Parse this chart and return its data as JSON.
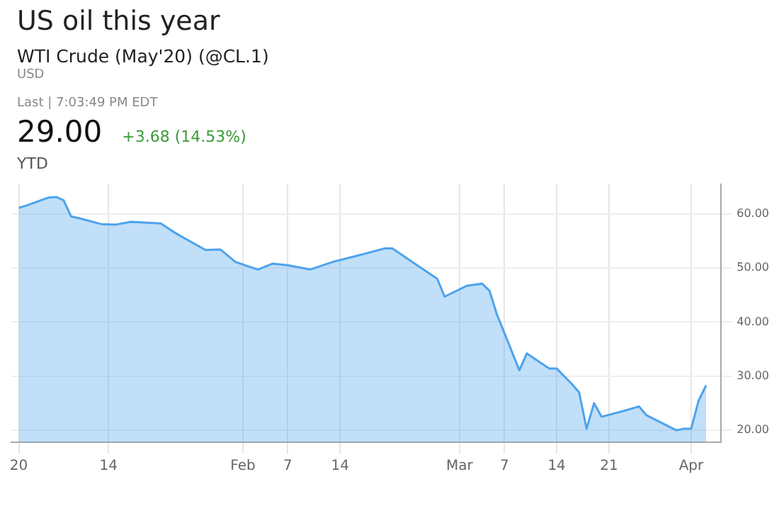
{
  "chart_data": {
    "type": "area",
    "title": "US oil this year",
    "subtitle": "WTI Crude (May'20) (@CL.1)",
    "annotations": [
      "USD",
      "Last | 7:03:49 PM EDT",
      "29.00",
      "+3.68 (14.53%)",
      "YTD"
    ],
    "x": [
      "2020-01-02",
      "2020-01-03",
      "2020-01-06",
      "2020-01-07",
      "2020-01-08",
      "2020-01-09",
      "2020-01-10",
      "2020-01-13",
      "2020-01-15",
      "2020-01-17",
      "2020-01-21",
      "2020-01-23",
      "2020-01-27",
      "2020-01-29",
      "2020-01-31",
      "2020-02-03",
      "2020-02-05",
      "2020-02-07",
      "2020-02-10",
      "2020-02-13",
      "2020-02-17",
      "2020-02-20",
      "2020-02-21",
      "2020-02-24",
      "2020-02-27",
      "2020-02-28",
      "2020-03-02",
      "2020-03-04",
      "2020-03-05",
      "2020-03-06",
      "2020-03-09",
      "2020-03-10",
      "2020-03-13",
      "2020-03-14",
      "2020-03-16",
      "2020-03-17",
      "2020-03-18",
      "2020-03-19",
      "2020-03-20",
      "2020-03-23",
      "2020-03-25",
      "2020-03-26",
      "2020-03-30",
      "2020-03-31",
      "2020-04-01",
      "2020-04-02",
      "2020-04-03"
    ],
    "series": [
      {
        "color": "#4da3ec",
        "values": [
          61.1,
          61.5,
          63.0,
          63.1,
          62.5,
          59.5,
          59.2,
          58.1,
          58.0,
          58.5,
          58.2,
          56.4,
          53.3,
          53.4,
          51.1,
          49.7,
          50.8,
          50.5,
          49.7,
          51.1,
          52.5,
          53.6,
          53.6,
          50.8,
          48.0,
          44.7,
          46.7,
          47.1,
          45.8,
          41.4,
          31.1,
          34.2,
          31.4,
          31.4,
          28.6,
          27.0,
          20.3,
          25.0,
          22.5,
          23.6,
          24.4,
          22.8,
          20.0,
          20.3,
          20.3,
          25.5,
          28.3
        ]
      }
    ],
    "xlim": [
      "2020-01-01",
      "2020-04-05"
    ],
    "xticks": [
      {
        "value": "2020-01-02",
        "label": "20"
      },
      {
        "value": "2020-01-14",
        "label": "14"
      },
      {
        "value": "2020-02-01",
        "label": "Feb"
      },
      {
        "value": "2020-02-07",
        "label": "7"
      },
      {
        "value": "2020-02-14",
        "label": "14"
      },
      {
        "value": "2020-03-01",
        "label": "Mar"
      },
      {
        "value": "2020-03-07",
        "label": "7"
      },
      {
        "value": "2020-03-14",
        "label": "14"
      },
      {
        "value": "2020-03-21",
        "label": "21"
      },
      {
        "value": "2020-04-01",
        "label": "Apr"
      }
    ],
    "ylim": [
      17.8,
      65.5
    ],
    "yticks": [
      {
        "value": 20,
        "label": "20.00"
      },
      {
        "value": 30,
        "label": "30.00"
      },
      {
        "value": 40,
        "label": "40.00"
      },
      {
        "value": 50,
        "label": "50.00"
      },
      {
        "value": 60,
        "label": "60.00"
      }
    ],
    "grid": true,
    "legend": false,
    "marker": "none",
    "line_style": "solid"
  }
}
